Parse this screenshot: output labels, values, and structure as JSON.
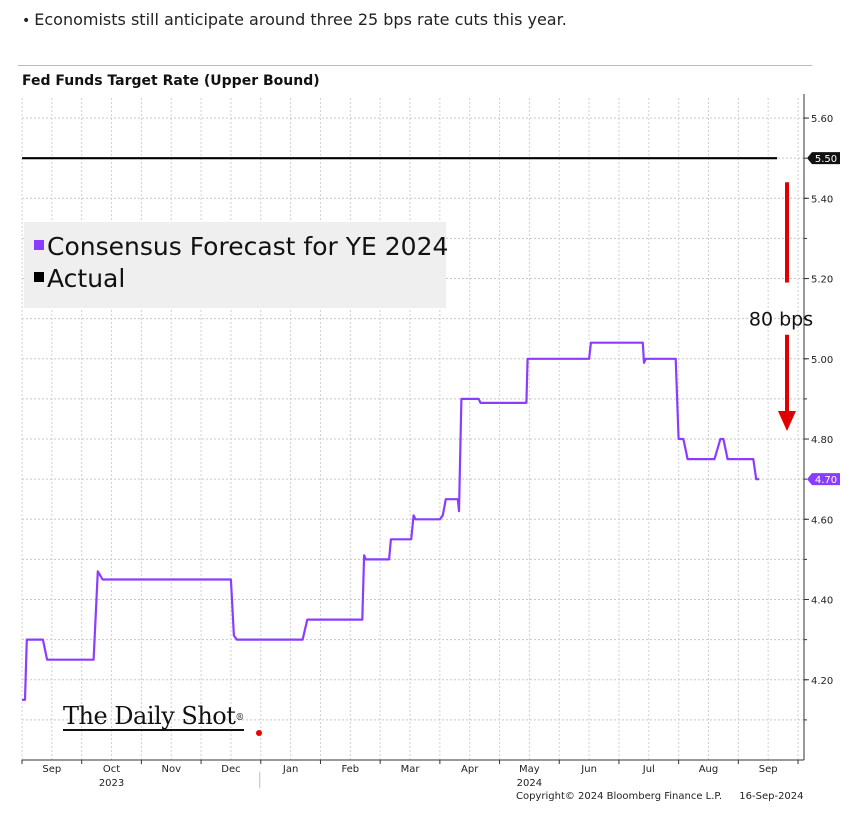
{
  "intro": {
    "bullet": "•",
    "text": "Economists still anticipate around three 25 bps rate cuts this year."
  },
  "chart_data": {
    "type": "line",
    "title": "Fed Funds Target Rate (Upper Bound)",
    "ylim": [
      4.0,
      5.65
    ],
    "yticks": [
      "5.60",
      "5.40",
      "5.20",
      "5.00",
      "4.80",
      "4.60",
      "4.40",
      "4.20"
    ],
    "ytick_values": [
      5.6,
      5.4,
      5.2,
      5.0,
      4.8,
      4.6,
      4.4,
      4.2
    ],
    "xticks": [
      {
        "label": "Sep",
        "x": 0.5
      },
      {
        "label": "Oct",
        "x": 1.5
      },
      {
        "label": "Nov",
        "x": 2.5
      },
      {
        "label": "Dec",
        "x": 3.5
      },
      {
        "label": "Jan",
        "x": 4.5
      },
      {
        "label": "Feb",
        "x": 5.5
      },
      {
        "label": "Mar",
        "x": 6.5
      },
      {
        "label": "Apr",
        "x": 7.5
      },
      {
        "label": "May",
        "x": 8.5
      },
      {
        "label": "Jun",
        "x": 9.5
      },
      {
        "label": "Jul",
        "x": 10.5
      },
      {
        "label": "Aug",
        "x": 11.5
      },
      {
        "label": "Sep",
        "x": 12.5
      }
    ],
    "year_labels": [
      {
        "label": "2023",
        "x": 1.5
      },
      {
        "label": "2024",
        "x": 8.5
      }
    ],
    "legend": [
      {
        "label": "Consensus Forecast for YE 2024",
        "color": "#8c3cff"
      },
      {
        "label": "Actual",
        "color": "#000000"
      }
    ],
    "series": [
      {
        "name": "Actual",
        "color": "#000000",
        "points": [
          [
            0,
            5.5
          ],
          [
            12.65,
            5.5
          ]
        ]
      },
      {
        "name": "Consensus Forecast for YE 2024",
        "color": "#8c3cff",
        "points": [
          [
            0,
            4.15
          ],
          [
            0.05,
            4.15
          ],
          [
            0.08,
            4.3
          ],
          [
            0.35,
            4.3
          ],
          [
            0.42,
            4.25
          ],
          [
            1.2,
            4.25
          ],
          [
            1.27,
            4.47
          ],
          [
            1.35,
            4.45
          ],
          [
            3.5,
            4.45
          ],
          [
            3.55,
            4.31
          ],
          [
            3.6,
            4.3
          ],
          [
            4.7,
            4.3
          ],
          [
            4.78,
            4.35
          ],
          [
            5.7,
            4.35
          ],
          [
            5.73,
            4.51
          ],
          [
            5.76,
            4.5
          ],
          [
            6.15,
            4.5
          ],
          [
            6.18,
            4.55
          ],
          [
            6.52,
            4.55
          ],
          [
            6.56,
            4.61
          ],
          [
            6.59,
            4.6
          ],
          [
            7.0,
            4.6
          ],
          [
            7.05,
            4.61
          ],
          [
            7.1,
            4.65
          ],
          [
            7.3,
            4.65
          ],
          [
            7.32,
            4.62
          ],
          [
            7.36,
            4.9
          ],
          [
            7.65,
            4.9
          ],
          [
            7.68,
            4.89
          ],
          [
            8.45,
            4.89
          ],
          [
            8.47,
            5.0
          ],
          [
            9.5,
            5.0
          ],
          [
            9.53,
            5.04
          ],
          [
            10.4,
            5.04
          ],
          [
            10.42,
            4.99
          ],
          [
            10.45,
            5.0
          ],
          [
            10.95,
            5.0
          ],
          [
            11.0,
            4.8
          ],
          [
            11.08,
            4.8
          ],
          [
            11.15,
            4.75
          ],
          [
            11.6,
            4.75
          ],
          [
            11.7,
            4.8
          ],
          [
            11.75,
            4.8
          ],
          [
            11.82,
            4.75
          ],
          [
            12.25,
            4.75
          ],
          [
            12.3,
            4.7
          ],
          [
            12.35,
            4.7
          ]
        ]
      }
    ],
    "value_badges": [
      {
        "label": "5.50",
        "value": 5.5,
        "color": "#111111"
      },
      {
        "label": "4.70",
        "value": 4.7,
        "color": "#8c3cff"
      }
    ],
    "annotation": {
      "label": "80 bps",
      "color": "#e00000"
    },
    "xlim": [
      0,
      13.1
    ],
    "grid": true,
    "legend_position": "top-left"
  },
  "branding": {
    "logo_text": "The Daily Shot",
    "logo_mark": "®"
  },
  "source": {
    "copyright": "Copyright© 2024 Bloomberg Finance L.P.",
    "date": "16-Sep-2024"
  }
}
